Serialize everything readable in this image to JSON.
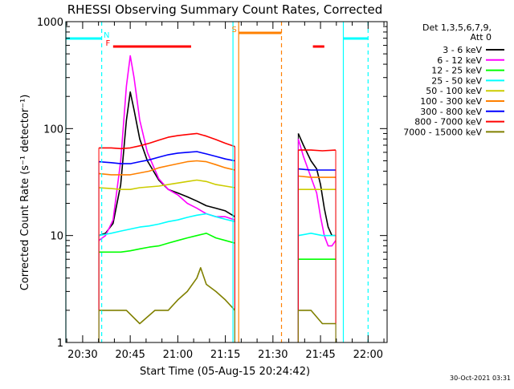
{
  "chart_data": {
    "type": "line",
    "title": "RHESSI Observing Summary Count Rates, Corrected",
    "xlabel": "Start Time (05-Aug-15 20:24:42)",
    "ylabel": "Corrected Count Rate (s⁻¹ detector⁻¹)",
    "y_scale": "log",
    "ylim": [
      1,
      1000
    ],
    "xlim": [
      20.4117,
      22.1
    ],
    "x_ticks": [
      {
        "t": 20.5,
        "label": "20:30"
      },
      {
        "t": 20.75,
        "label": "20:45"
      },
      {
        "t": 21.0,
        "label": "21:00"
      },
      {
        "t": 21.25,
        "label": "21:15"
      },
      {
        "t": 21.5,
        "label": "21:30"
      },
      {
        "t": 21.75,
        "label": "21:45"
      },
      {
        "t": 22.0,
        "label": "22:00"
      }
    ],
    "y_ticks": [
      {
        "v": 1,
        "label": "1"
      },
      {
        "v": 10,
        "label": "10"
      },
      {
        "v": 100,
        "label": "100"
      },
      {
        "v": 1000,
        "label": "1000"
      }
    ],
    "legend_header": [
      "Det 1,3,5,6,7,9,",
      "Att 0"
    ],
    "legend_position": "right",
    "series": [
      {
        "name": "3 - 6 keV",
        "color": "#000000",
        "segments": [
          [
            [
              20.585,
              10
            ],
            [
              20.62,
              10.5
            ],
            [
              20.66,
              13
            ],
            [
              20.7,
              30
            ],
            [
              20.73,
              120
            ],
            [
              20.75,
              220
            ],
            [
              20.77,
              150
            ],
            [
              20.8,
              80
            ],
            [
              20.84,
              50
            ],
            [
              20.9,
              33
            ],
            [
              20.95,
              27
            ],
            [
              21.0,
              25
            ],
            [
              21.05,
              23
            ],
            [
              21.1,
              21
            ],
            [
              21.15,
              19
            ],
            [
              21.2,
              18
            ],
            [
              21.25,
              17
            ],
            [
              21.3,
              15
            ]
          ],
          [
            [
              21.633,
              90
            ],
            [
              21.66,
              70
            ],
            [
              21.7,
              50
            ],
            [
              21.73,
              42
            ],
            [
              21.75,
              30
            ],
            [
              21.77,
              18
            ],
            [
              21.79,
              12
            ],
            [
              21.81,
              10
            ],
            [
              21.83,
              10
            ]
          ]
        ]
      },
      {
        "name": "6 - 12 keV",
        "color": "#ff00ff",
        "segments": [
          [
            [
              20.585,
              9
            ],
            [
              20.62,
              10
            ],
            [
              20.66,
              14
            ],
            [
              20.7,
              50
            ],
            [
              20.73,
              250
            ],
            [
              20.75,
              480
            ],
            [
              20.77,
              300
            ],
            [
              20.8,
              120
            ],
            [
              20.84,
              60
            ],
            [
              20.9,
              34
            ],
            [
              20.95,
              27
            ],
            [
              21.0,
              24
            ],
            [
              21.05,
              20
            ],
            [
              21.1,
              18
            ],
            [
              21.15,
              16
            ],
            [
              21.2,
              15
            ],
            [
              21.25,
              15
            ],
            [
              21.3,
              14
            ]
          ],
          [
            [
              21.633,
              80
            ],
            [
              21.66,
              55
            ],
            [
              21.7,
              35
            ],
            [
              21.73,
              25
            ],
            [
              21.75,
              15
            ],
            [
              21.77,
              10
            ],
            [
              21.79,
              8
            ],
            [
              21.81,
              8
            ],
            [
              21.83,
              9
            ]
          ]
        ]
      },
      {
        "name": "12 - 25 keV",
        "color": "#00ff00",
        "segments": [
          [
            [
              20.585,
              7
            ],
            [
              20.65,
              7
            ],
            [
              20.7,
              7
            ],
            [
              20.75,
              7.2
            ],
            [
              20.8,
              7.5
            ],
            [
              20.85,
              7.8
            ],
            [
              20.9,
              8
            ],
            [
              20.95,
              8.5
            ],
            [
              21.0,
              9
            ],
            [
              21.05,
              9.5
            ],
            [
              21.1,
              10
            ],
            [
              21.15,
              10.5
            ],
            [
              21.2,
              9.5
            ],
            [
              21.25,
              9
            ],
            [
              21.3,
              8.5
            ]
          ],
          [
            [
              21.633,
              6
            ],
            [
              21.7,
              6
            ],
            [
              21.76,
              6
            ],
            [
              21.83,
              6
            ]
          ]
        ]
      },
      {
        "name": "25 - 50 keV",
        "color": "#00ffff",
        "segments": [
          [
            [
              20.585,
              10
            ],
            [
              20.65,
              10.5
            ],
            [
              20.7,
              11
            ],
            [
              20.75,
              11.5
            ],
            [
              20.8,
              12
            ],
            [
              20.85,
              12.3
            ],
            [
              20.9,
              12.8
            ],
            [
              20.95,
              13.5
            ],
            [
              21.0,
              14
            ],
            [
              21.05,
              14.8
            ],
            [
              21.1,
              15.5
            ],
            [
              21.15,
              16
            ],
            [
              21.2,
              15
            ],
            [
              21.25,
              14.2
            ],
            [
              21.3,
              13.5
            ]
          ],
          [
            [
              21.633,
              10
            ],
            [
              21.7,
              10.5
            ],
            [
              21.76,
              10
            ],
            [
              21.83,
              10
            ]
          ]
        ]
      },
      {
        "name": "50 - 100 keV",
        "color": "#cccc00",
        "segments": [
          [
            [
              20.585,
              28
            ],
            [
              20.65,
              27.5
            ],
            [
              20.7,
              27
            ],
            [
              20.75,
              27
            ],
            [
              20.8,
              28
            ],
            [
              20.85,
              28.5
            ],
            [
              20.9,
              29
            ],
            [
              20.95,
              30
            ],
            [
              21.0,
              31
            ],
            [
              21.05,
              32
            ],
            [
              21.1,
              33
            ],
            [
              21.15,
              32
            ],
            [
              21.2,
              30
            ],
            [
              21.25,
              29
            ],
            [
              21.3,
              28
            ]
          ],
          [
            [
              21.633,
              27
            ],
            [
              21.7,
              27
            ],
            [
              21.76,
              27
            ],
            [
              21.83,
              27
            ]
          ]
        ]
      },
      {
        "name": "100 - 300 keV",
        "color": "#ff8000",
        "segments": [
          [
            [
              20.585,
              38
            ],
            [
              20.65,
              37
            ],
            [
              20.7,
              37
            ],
            [
              20.75,
              37
            ],
            [
              20.8,
              38.5
            ],
            [
              20.85,
              40
            ],
            [
              20.9,
              43
            ],
            [
              20.95,
              45
            ],
            [
              21.0,
              47
            ],
            [
              21.05,
              49
            ],
            [
              21.1,
              50
            ],
            [
              21.15,
              49
            ],
            [
              21.2,
              46
            ],
            [
              21.25,
              43
            ],
            [
              21.3,
              41
            ]
          ],
          [
            [
              21.633,
              36
            ],
            [
              21.7,
              35
            ],
            [
              21.76,
              35
            ],
            [
              21.83,
              35
            ]
          ]
        ]
      },
      {
        "name": "300 - 800 keV",
        "color": "#0000ff",
        "segments": [
          [
            [
              20.585,
              49
            ],
            [
              20.65,
              48
            ],
            [
              20.7,
              47
            ],
            [
              20.75,
              47
            ],
            [
              20.8,
              49
            ],
            [
              20.85,
              51
            ],
            [
              20.9,
              54
            ],
            [
              20.95,
              57
            ],
            [
              21.0,
              59
            ],
            [
              21.05,
              60
            ],
            [
              21.1,
              61
            ],
            [
              21.15,
              58
            ],
            [
              21.2,
              55
            ],
            [
              21.25,
              52
            ],
            [
              21.3,
              50
            ]
          ],
          [
            [
              21.633,
              42
            ],
            [
              21.7,
              41
            ],
            [
              21.76,
              41
            ],
            [
              21.83,
              41
            ]
          ]
        ]
      },
      {
        "name": "800 - 7000 keV",
        "color": "#ff0000",
        "segments": [
          [
            [
              20.585,
              66
            ],
            [
              20.65,
              66
            ],
            [
              20.7,
              65
            ],
            [
              20.75,
              66
            ],
            [
              20.8,
              69
            ],
            [
              20.85,
              73
            ],
            [
              20.9,
              78
            ],
            [
              20.95,
              83
            ],
            [
              21.0,
              86
            ],
            [
              21.05,
              88
            ],
            [
              21.1,
              90
            ],
            [
              21.15,
              85
            ],
            [
              21.2,
              79
            ],
            [
              21.25,
              73
            ],
            [
              21.3,
              68
            ]
          ],
          [
            [
              21.633,
              63
            ],
            [
              21.7,
              63
            ],
            [
              21.76,
              62
            ],
            [
              21.83,
              63
            ]
          ]
        ]
      },
      {
        "name": "7000 - 15000 keV",
        "color": "#808000",
        "segments": [
          [
            [
              20.585,
              2
            ],
            [
              20.66,
              2
            ],
            [
              20.73,
              2
            ],
            [
              20.8,
              1.5
            ],
            [
              20.88,
              2
            ],
            [
              20.95,
              2
            ],
            [
              21.0,
              2.5
            ],
            [
              21.05,
              3
            ],
            [
              21.1,
              4
            ],
            [
              21.12,
              5
            ],
            [
              21.15,
              3.5
            ],
            [
              21.2,
              3
            ],
            [
              21.25,
              2.5
            ],
            [
              21.3,
              2
            ]
          ],
          [
            [
              21.633,
              2
            ],
            [
              21.7,
              2
            ],
            [
              21.76,
              1.5
            ],
            [
              21.83,
              1.5
            ]
          ]
        ]
      }
    ],
    "flags": [
      {
        "label": "N",
        "color": "#00ffff",
        "level": "top",
        "dashed": true,
        "bars": [
          [
            20.4117,
            20.6
          ],
          [
            21.87,
            22.0
          ]
        ],
        "dash_lines": [
          20.6,
          22.0
        ],
        "solid_lines": [
          20.4117,
          21.29,
          21.87
        ],
        "label_t": 20.61
      },
      {
        "label": "F",
        "color": "#ff0000",
        "level": "middle",
        "bars": [
          [
            20.66,
            21.07
          ],
          [
            21.71,
            21.77
          ]
        ],
        "label_t": 20.645
      },
      {
        "label": "S",
        "color": "#ff8000",
        "level": "upper",
        "bars": [
          [
            21.32,
            21.545
          ]
        ],
        "solid_lines": [
          21.32
        ],
        "dash_lines": [
          21.545
        ],
        "label_t": 21.31
      }
    ]
  },
  "footer": {
    "stamp": "30-Oct-2021 03:31"
  }
}
